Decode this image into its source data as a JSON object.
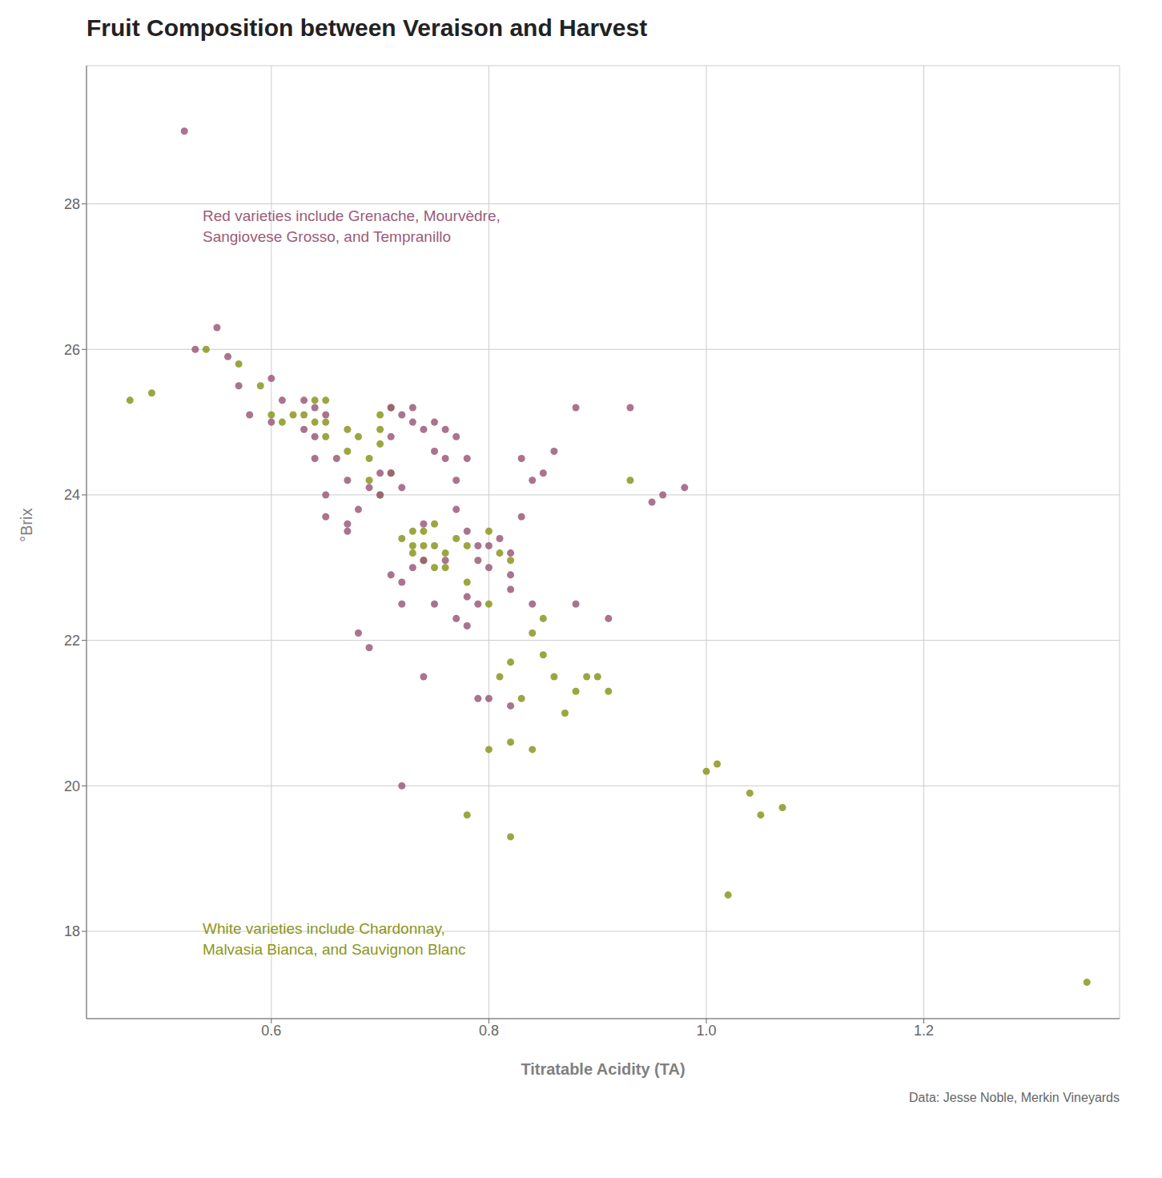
{
  "chart_data": {
    "type": "scatter",
    "title": "Fruit Composition between Veraison and Harvest",
    "x_label": "Titratable Acidity (TA)",
    "y_label": "°Brix",
    "credit": "Data: Jesse Noble, Merkin Vineyards",
    "xlim": [
      0.43,
      1.38
    ],
    "ylim": [
      16.8,
      29.9
    ],
    "xticks": [
      0.6,
      0.8,
      {
        "value": 1.0,
        "label": "1.0"
      },
      1.2
    ],
    "yticks": [
      18,
      20,
      22,
      24,
      26,
      28
    ],
    "grid": true,
    "annotations": [
      {
        "lines": [
          "Red varieties include Grenache, Mourvèdre,",
          "Sangiovese Grosso, and Tempranillo"
        ],
        "color": "#9B5B7A"
      },
      {
        "lines": [
          "White varieties include Chardonnay,",
          "Malvasia Bianca, and Sauvignon Blanc"
        ],
        "color": "#8B9620"
      }
    ],
    "series": [
      {
        "color": "#8B9620",
        "x": [
          0.47,
          0.49,
          0.54,
          0.57,
          0.59,
          0.6,
          0.61,
          0.62,
          0.63,
          0.64,
          0.64,
          0.65,
          0.65,
          0.65,
          0.67,
          0.67,
          0.68,
          0.69,
          0.69,
          0.7,
          0.7,
          0.71,
          0.7,
          0.7,
          0.71,
          0.72,
          0.73,
          0.73,
          0.73,
          0.74,
          0.74,
          0.74,
          0.75,
          0.75,
          0.75,
          0.76,
          0.76,
          0.77,
          0.78,
          0.8,
          0.81,
          0.82,
          0.78,
          0.8,
          0.81,
          0.82,
          0.83,
          0.84,
          0.85,
          0.85,
          0.86,
          0.87,
          0.88,
          0.89,
          0.9,
          0.91,
          0.93,
          0.8,
          0.82,
          0.84,
          0.78,
          0.82,
          1.0,
          1.01,
          1.04,
          1.05,
          1.07,
          1.02,
          1.35
        ],
        "values": [
          25.3,
          25.4,
          26.0,
          25.8,
          25.5,
          25.1,
          25.0,
          25.1,
          25.1,
          25.3,
          25.0,
          25.3,
          25.0,
          24.8,
          24.9,
          24.6,
          24.8,
          24.5,
          24.2,
          25.1,
          24.9,
          25.2,
          24.7,
          24.0,
          24.3,
          23.4,
          23.5,
          23.3,
          23.2,
          23.5,
          23.3,
          23.1,
          23.6,
          23.3,
          23.0,
          23.2,
          23.0,
          23.4,
          23.3,
          23.5,
          23.2,
          23.1,
          22.8,
          22.5,
          21.5,
          21.7,
          21.2,
          22.1,
          22.3,
          21.8,
          21.5,
          21.0,
          21.3,
          21.5,
          21.5,
          21.3,
          24.2,
          20.5,
          20.6,
          20.5,
          19.6,
          19.3,
          20.2,
          20.3,
          19.9,
          19.6,
          19.7,
          18.5,
          17.3
        ]
      },
      {
        "color": "#9B5B7A",
        "x": [
          0.52,
          0.55,
          0.53,
          0.56,
          0.57,
          0.6,
          0.61,
          0.58,
          0.6,
          0.63,
          0.64,
          0.65,
          0.63,
          0.64,
          0.64,
          0.66,
          0.67,
          0.65,
          0.65,
          0.67,
          0.67,
          0.69,
          0.68,
          0.7,
          0.71,
          0.7,
          0.71,
          0.72,
          0.71,
          0.73,
          0.73,
          0.72,
          0.75,
          0.74,
          0.75,
          0.74,
          0.76,
          0.76,
          0.77,
          0.78,
          0.77,
          0.77,
          0.78,
          0.79,
          0.79,
          0.8,
          0.8,
          0.81,
          0.82,
          0.82,
          0.83,
          0.83,
          0.84,
          0.85,
          0.86,
          0.88,
          0.71,
          0.72,
          0.72,
          0.73,
          0.74,
          0.75,
          0.76,
          0.77,
          0.78,
          0.78,
          0.79,
          0.82,
          0.84,
          0.88,
          0.91,
          0.68,
          0.69,
          0.74,
          0.79,
          0.8,
          0.82,
          0.72,
          0.95,
          0.96,
          0.98,
          0.93
        ],
        "values": [
          29.0,
          26.3,
          26.0,
          25.9,
          25.5,
          25.6,
          25.3,
          25.1,
          25.0,
          25.3,
          25.2,
          25.1,
          24.9,
          24.8,
          24.5,
          24.5,
          24.2,
          24.0,
          23.7,
          23.6,
          23.5,
          24.1,
          23.8,
          24.3,
          24.3,
          24.0,
          24.8,
          25.1,
          25.2,
          25.2,
          25.0,
          24.1,
          25.0,
          24.9,
          24.6,
          23.6,
          24.9,
          24.5,
          24.8,
          24.5,
          24.2,
          23.8,
          23.5,
          23.3,
          23.1,
          23.3,
          23.0,
          23.4,
          23.2,
          22.9,
          24.5,
          23.7,
          24.2,
          24.3,
          24.6,
          25.2,
          22.9,
          22.8,
          22.5,
          23.0,
          23.1,
          22.5,
          23.1,
          22.3,
          22.6,
          22.2,
          22.5,
          22.7,
          22.5,
          22.5,
          22.3,
          22.1,
          21.9,
          21.5,
          21.2,
          21.2,
          21.1,
          20.0,
          23.9,
          24.0,
          24.1,
          25.2
        ]
      }
    ]
  }
}
